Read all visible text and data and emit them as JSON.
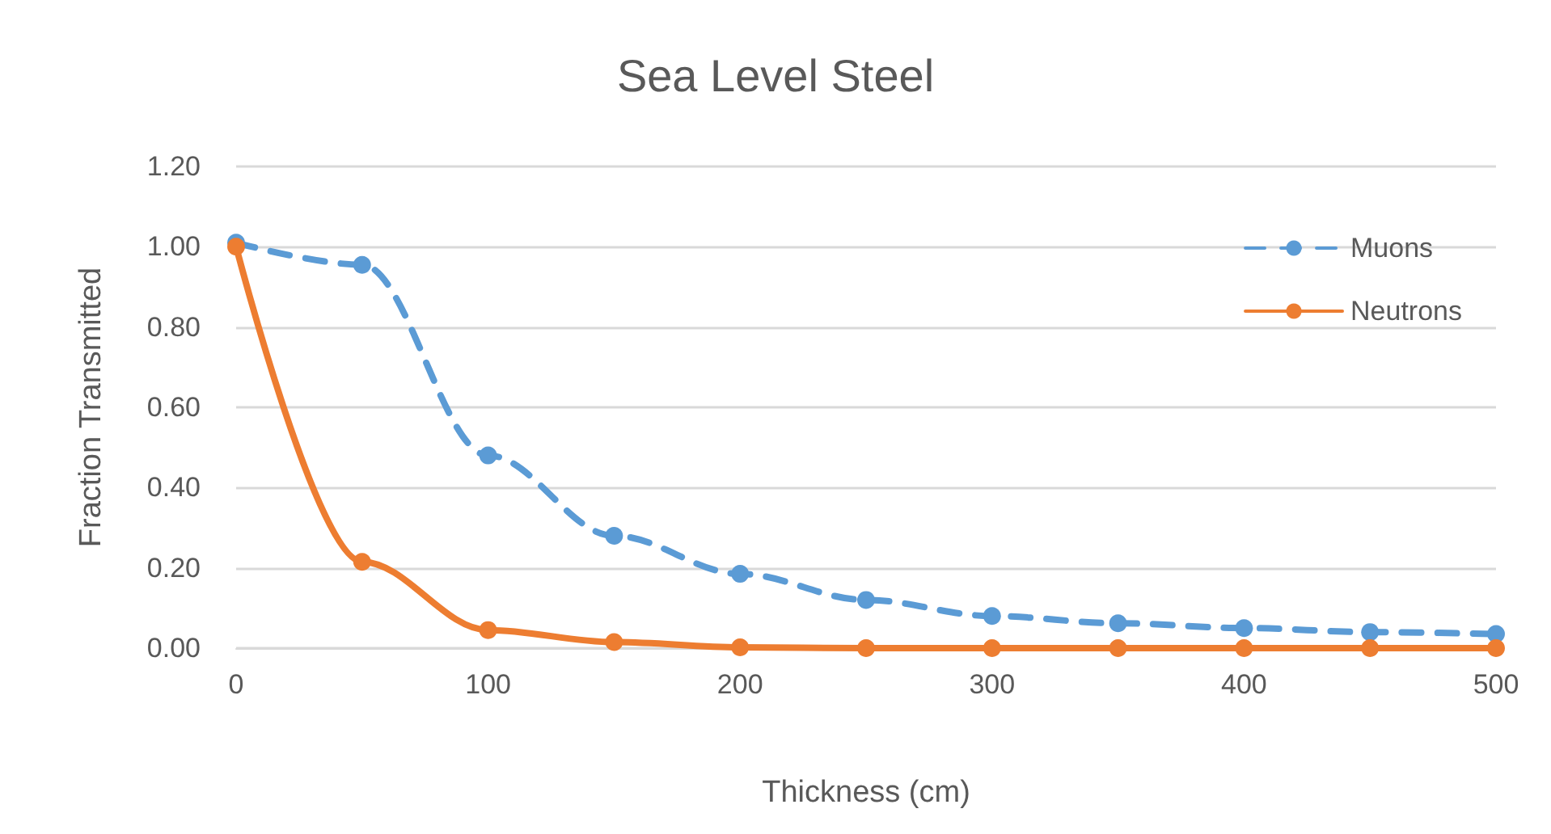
{
  "chart_data": {
    "type": "line",
    "title": "Sea Level Steel",
    "xlabel": "Thickness (cm)",
    "ylabel": "Fraction Transmitted",
    "x": [
      0,
      50,
      100,
      150,
      200,
      250,
      300,
      350,
      400,
      450,
      500
    ],
    "series": [
      {
        "name": "Muons",
        "color": "#5b9bd5",
        "line_style": "dashed",
        "values": [
          1.01,
          0.955,
          0.48,
          0.28,
          0.185,
          0.12,
          0.08,
          0.062,
          0.05,
          0.04,
          0.035
        ]
      },
      {
        "name": "Neutrons",
        "color": "#ed7d31",
        "line_style": "solid",
        "values": [
          1.0,
          0.215,
          0.045,
          0.015,
          0.002,
          0,
          0,
          0,
          0,
          0,
          0
        ]
      }
    ],
    "xlim": [
      0,
      500
    ],
    "xticks": [
      0,
      100,
      200,
      300,
      400,
      500
    ],
    "ylim": [
      0,
      1.2
    ],
    "yticks": [
      {
        "value": 0,
        "label": "0.00"
      },
      {
        "value": 0.2,
        "label": "0.20"
      },
      {
        "value": 0.4,
        "label": "0.40"
      },
      {
        "value": 0.6,
        "label": "0.60"
      },
      {
        "value": 0.8,
        "label": "0.80"
      },
      {
        "value": 1.0,
        "label": "1.00"
      },
      {
        "value": 1.2,
        "label": "1.20"
      }
    ],
    "grid": "y",
    "legend": "top right",
    "marker": "circle"
  }
}
